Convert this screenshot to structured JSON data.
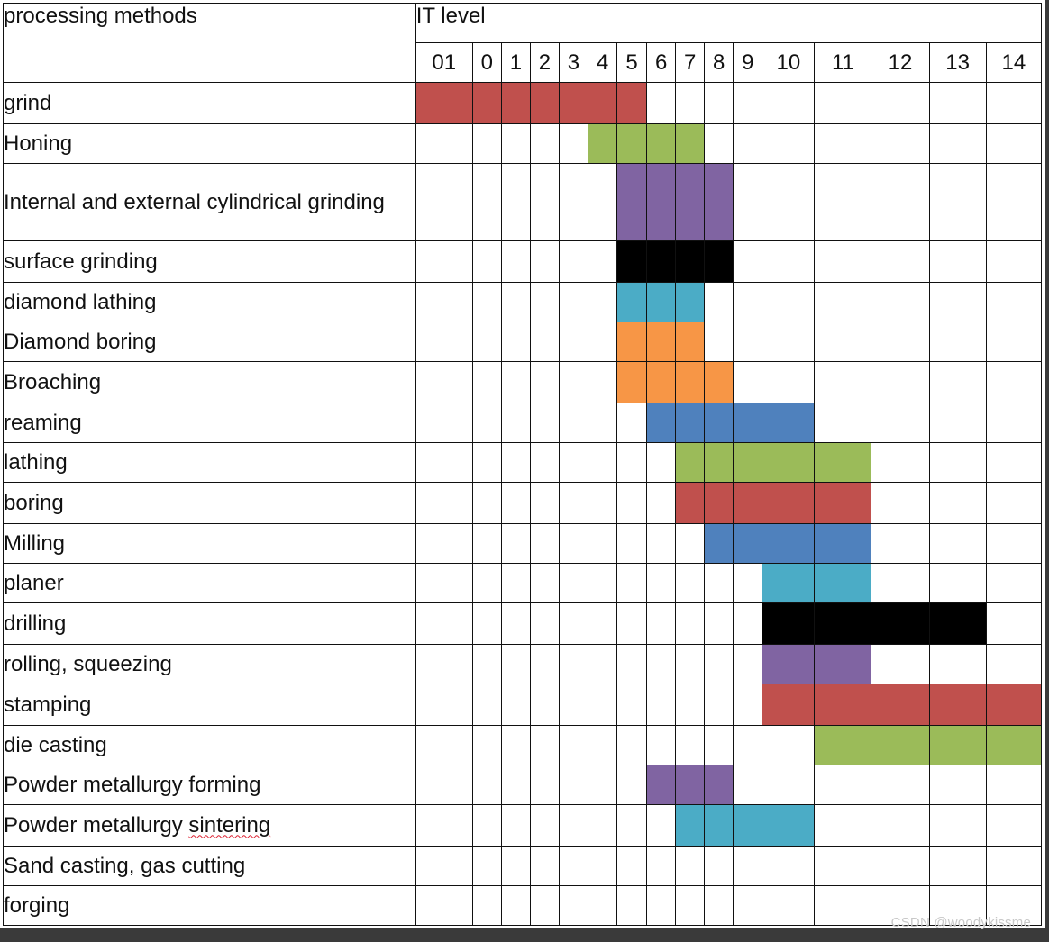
{
  "header": {
    "methods_label": "processing methods",
    "it_label": "IT level"
  },
  "it_levels": [
    "01",
    "0",
    "1",
    "2",
    "3",
    "4",
    "5",
    "6",
    "7",
    "8",
    "9",
    "10",
    "11",
    "12",
    "13",
    "14"
  ],
  "colors": {
    "red": "#c0504d",
    "green": "#9bbb59",
    "purple": "#8064a2",
    "black": "#000000",
    "cyan": "#4bacc6",
    "orange": "#f79646",
    "blue": "#4f81bd"
  },
  "rows": [
    {
      "method": "grind",
      "from": "01",
      "to": "5",
      "color": "red"
    },
    {
      "method": "Honing",
      "from": "4",
      "to": "7",
      "color": "green"
    },
    {
      "method": "Internal and external cylindrical grinding",
      "from": "5",
      "to": "8",
      "color": "purple"
    },
    {
      "method": "surface grinding",
      "from": "5",
      "to": "8",
      "color": "black"
    },
    {
      "method": "diamond lathing",
      "from": "5",
      "to": "7",
      "color": "cyan"
    },
    {
      "method": "Diamond boring",
      "from": "5",
      "to": "7",
      "color": "orange"
    },
    {
      "method": "Broaching",
      "from": "5",
      "to": "8",
      "color": "orange"
    },
    {
      "method": "reaming",
      "from": "6",
      "to": "10",
      "color": "blue"
    },
    {
      "method": "lathing",
      "from": "7",
      "to": "11",
      "color": "green"
    },
    {
      "method": "boring",
      "from": "7",
      "to": "11",
      "color": "red"
    },
    {
      "method": "Milling",
      "from": "8",
      "to": "11",
      "color": "blue"
    },
    {
      "method": "planer",
      "from": "10",
      "to": "11",
      "color": "cyan"
    },
    {
      "method": "drilling",
      "from": "10",
      "to": "13",
      "color": "black"
    },
    {
      "method": "rolling, squeezing",
      "from": "10",
      "to": "11",
      "color": "purple"
    },
    {
      "method": "stamping",
      "from": "10",
      "to": "14",
      "color": "red"
    },
    {
      "method": "die casting",
      "from": "11",
      "to": "14",
      "color": "green"
    },
    {
      "method": "Powder metallurgy forming",
      "from": "6",
      "to": "8",
      "color": "purple"
    },
    {
      "method": "Powder metallurgy sintering",
      "from": "7",
      "to": "10",
      "color": "cyan"
    },
    {
      "method": "Sand casting, gas cutting",
      "from": null,
      "to": null,
      "color": null
    },
    {
      "method": "forging",
      "from": null,
      "to": null,
      "color": null
    }
  ],
  "watermark": "CSDN @woodykissme"
}
